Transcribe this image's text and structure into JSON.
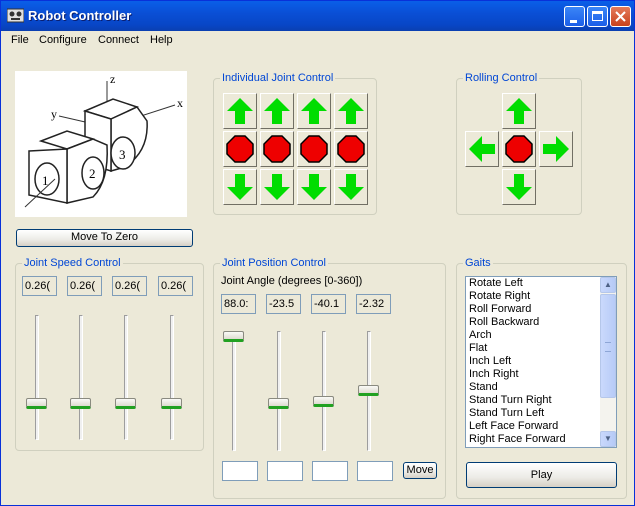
{
  "window": {
    "title": "Robot Controller"
  },
  "menu": [
    "File",
    "Configure",
    "Connect",
    "Help"
  ],
  "move_to_zero_label": "Move To Zero",
  "diagram": {
    "x": "x",
    "y": "y",
    "z": "z",
    "joints": [
      "1",
      "2",
      "3"
    ]
  },
  "joint_control": {
    "title": "Individual Joint Control"
  },
  "rolling": {
    "title": "Rolling Control"
  },
  "speed": {
    "title": "Joint Speed Control",
    "values": [
      "0.26(",
      "0.26(",
      "0.26(",
      "0.26("
    ]
  },
  "position": {
    "title": "Joint Position Control",
    "subtitle": "Joint Angle (degrees [0-360])",
    "values": [
      "88.0:",
      "-23.5",
      "-40.1",
      "-2.32"
    ],
    "move_label": "Move"
  },
  "gaits": {
    "title": "Gaits",
    "items": [
      "Rotate Left",
      "Rotate Right",
      "Roll Forward",
      "Roll Backward",
      "Arch",
      "Flat",
      "Inch Left",
      "Inch Right",
      "Stand",
      "Stand Turn Right",
      "Stand Turn Left",
      "Left Face Forward",
      "Right Face Forward"
    ],
    "play_label": "Play"
  },
  "colors": {
    "arrow": "#00dd00",
    "stop": "#ee0000",
    "group_label": "#0046d5"
  }
}
